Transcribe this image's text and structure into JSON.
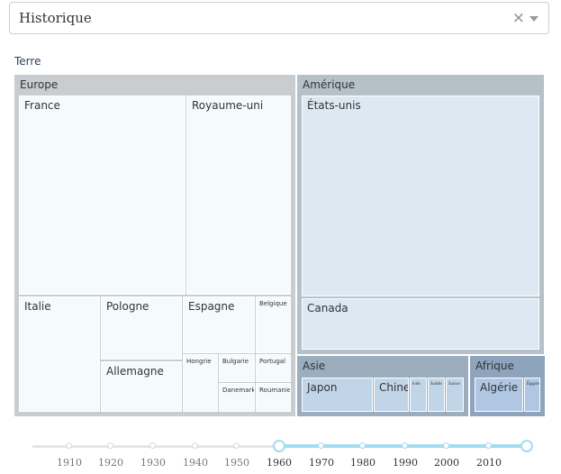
{
  "dropdown": {
    "value": "Historique",
    "clear": "×"
  },
  "breadcrumb": "Terre",
  "treemap": {
    "groups": {
      "europe": "Europe",
      "amerique": "Amérique",
      "asie": "Asie",
      "afrique": "Afrique"
    },
    "leaves": {
      "france": "France",
      "royaume_uni": "Royaume-uni",
      "italie": "Italie",
      "pologne": "Pologne",
      "espagne": "Espagne",
      "belgique": "Belgique",
      "allemagne": "Allemagne",
      "hongrie": "Hongrie",
      "bulgarie": "Bulgarie",
      "portugal": "Portugal",
      "danemark": "Danemark",
      "roumanie": "Roumanie",
      "etats_unis": "États-unis",
      "canada": "Canada",
      "japon": "Japon",
      "chine": "Chine",
      "inde": "Inde",
      "suede": "Suède",
      "suisse": "Suisse",
      "algerie": "Algérie",
      "egypte": "Égypte"
    }
  },
  "slider": {
    "ticks": [
      "1910",
      "1920",
      "1930",
      "1940",
      "1950",
      "1960",
      "1970",
      "1980",
      "1990",
      "2000",
      "2010"
    ],
    "range": [
      "1960",
      "2019"
    ]
  }
}
